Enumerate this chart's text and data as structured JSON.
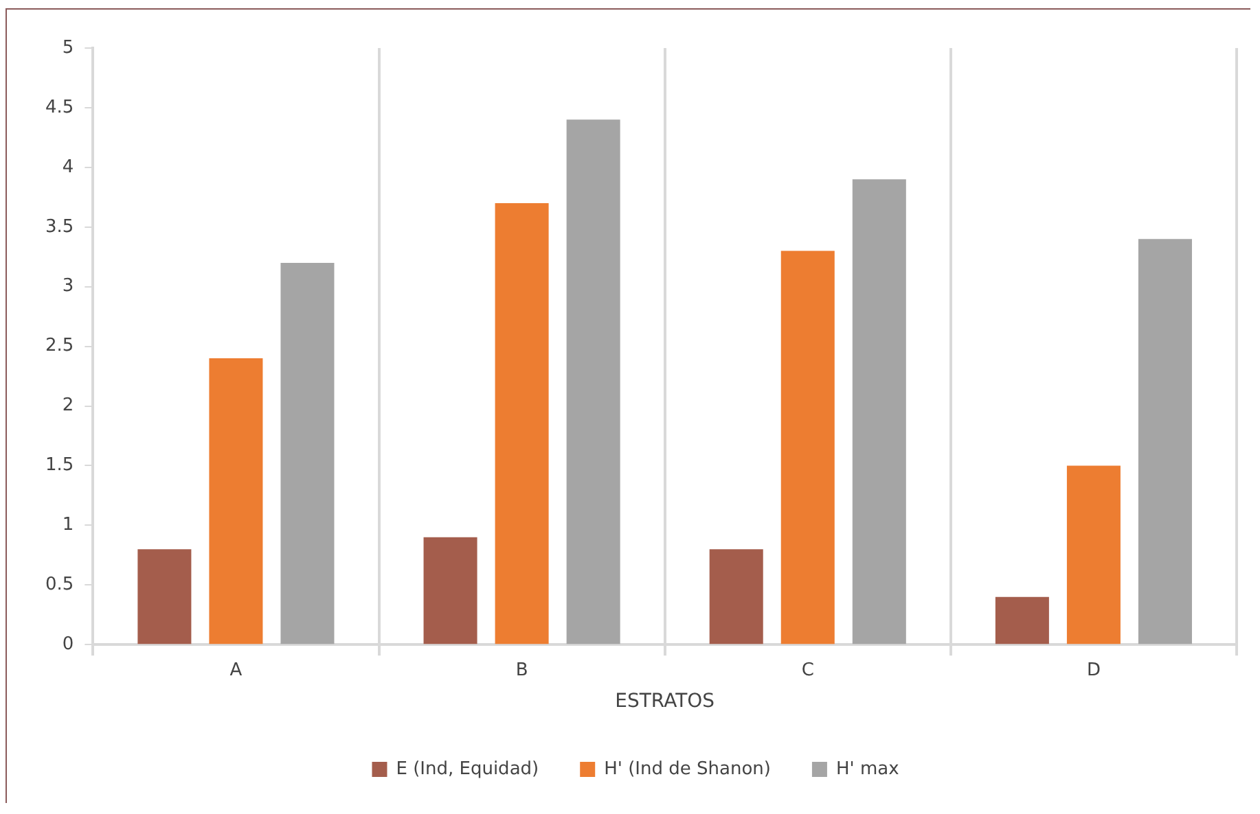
{
  "chart_data": {
    "type": "bar",
    "xlabel": "ESTRATOS",
    "categories": [
      "A",
      "B",
      "C",
      "D"
    ],
    "series": [
      {
        "name": "E (Ind, Equidad)",
        "color": "#a45d4c",
        "values": [
          0.8,
          0.9,
          0.8,
          0.4
        ]
      },
      {
        "name": "H' (Ind de Shanon)",
        "color": "#ed7d31",
        "values": [
          2.4,
          3.7,
          3.3,
          1.5
        ]
      },
      {
        "name": "H' max",
        "color": "#a5a5a5",
        "values": [
          3.2,
          4.4,
          3.9,
          3.4
        ]
      }
    ],
    "ylim": [
      0,
      5
    ],
    "yticks": [
      0,
      0.5,
      1,
      1.5,
      2,
      2.5,
      3,
      3.5,
      4,
      4.5,
      5
    ],
    "grid": "x",
    "legend": "bottom"
  }
}
